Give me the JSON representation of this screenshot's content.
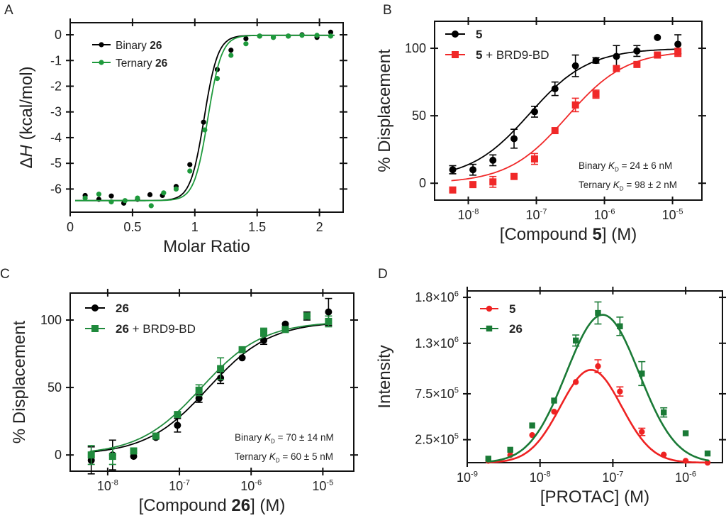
{
  "chart_data": [
    {
      "panel_label": "A",
      "type": "scatter",
      "xscale": "linear",
      "xlim": [
        0,
        2.19
      ],
      "ylim": [
        -6.9,
        0.47
      ],
      "xlabel": [
        [
          "Molar Ratio",
          ""
        ]
      ],
      "ylabel": [
        [
          "Δ",
          ""
        ],
        [
          "H",
          "i"
        ],
        [
          " (kcal/mol)",
          ""
        ]
      ],
      "xticks": [
        0,
        0.5,
        1,
        1.5,
        2
      ],
      "xtick_labels": [
        [
          [
            "0",
            ""
          ]
        ],
        [
          [
            "0.5",
            ""
          ]
        ],
        [
          [
            "1",
            ""
          ]
        ],
        [
          [
            "1.5",
            ""
          ]
        ],
        [
          [
            "2",
            ""
          ]
        ]
      ],
      "yticks": [
        0,
        -1,
        -2,
        -3,
        -4,
        -5,
        -6
      ],
      "ytick_labels": [
        [
          [
            "0",
            ""
          ]
        ],
        [
          [
            "-1",
            ""
          ]
        ],
        [
          [
            "-2",
            ""
          ]
        ],
        [
          [
            "-3",
            ""
          ]
        ],
        [
          [
            "-4",
            ""
          ]
        ],
        [
          [
            "-5",
            ""
          ]
        ],
        [
          [
            "-6",
            ""
          ]
        ]
      ],
      "legend": "top-left",
      "fit_curve": "sigmoid",
      "series": [
        {
          "name": [
            [
              "Binary ",
              ""
            ],
            [
              "26",
              "b"
            ]
          ],
          "color": "#000000",
          "marker": "circle",
          "points": [
            [
              0.12,
              -6.25
            ],
            [
              0.23,
              -6.4
            ],
            [
              0.33,
              -6.27
            ],
            [
              0.43,
              -6.55
            ],
            [
              0.54,
              -6.4
            ],
            [
              0.64,
              -6.22
            ],
            [
              0.74,
              -6.25
            ],
            [
              0.85,
              -5.9
            ],
            [
              0.96,
              -5.05
            ],
            [
              1.07,
              -3.4
            ],
            [
              1.18,
              -1.35
            ],
            [
              1.29,
              -0.6
            ],
            [
              1.41,
              -0.15
            ],
            [
              1.52,
              -0.05
            ],
            [
              1.63,
              -0.1
            ],
            [
              1.75,
              -0.05
            ],
            [
              1.86,
              0.0
            ],
            [
              1.98,
              -0.1
            ],
            [
              2.09,
              0.1
            ]
          ]
        },
        {
          "name": [
            [
              "Ternary ",
              ""
            ],
            [
              "26",
              "b"
            ]
          ],
          "color": "#1e9a3c",
          "marker": "circle",
          "points": [
            [
              0.12,
              -6.35
            ],
            [
              0.23,
              -6.2
            ],
            [
              0.33,
              -6.5
            ],
            [
              0.44,
              -6.45
            ],
            [
              0.54,
              -6.35
            ],
            [
              0.65,
              -6.65
            ],
            [
              0.75,
              -6.15
            ],
            [
              0.85,
              -6.0
            ],
            [
              0.96,
              -5.3
            ],
            [
              1.08,
              -3.7
            ],
            [
              1.18,
              -1.7
            ],
            [
              1.29,
              -0.8
            ],
            [
              1.41,
              -0.35
            ],
            [
              1.52,
              -0.05
            ],
            [
              1.63,
              -0.1
            ],
            [
              1.75,
              -0.05
            ],
            [
              1.86,
              -0.02
            ],
            [
              1.98,
              -0.02
            ],
            [
              2.09,
              -0.05
            ]
          ]
        }
      ]
    },
    {
      "panel_label": "B",
      "type": "scatter",
      "xscale": "log",
      "xlim": [
        3.2e-09,
        2.7e-05
      ],
      "ylim": [
        -12.5,
        120
      ],
      "xlabel": [
        [
          "[Compound ",
          ""
        ],
        [
          "5",
          "b"
        ],
        [
          "] (M)",
          ""
        ]
      ],
      "ylabel": [
        [
          "% Displacement",
          ""
        ]
      ],
      "xticks": [
        1e-08,
        1e-07,
        1e-06,
        1e-05
      ],
      "xtick_labels": [
        [
          [
            "10",
            ""
          ],
          [
            "-8",
            "sup"
          ]
        ],
        [
          [
            "10",
            ""
          ],
          [
            "-7",
            "sup"
          ]
        ],
        [
          [
            "10",
            ""
          ],
          [
            "-6",
            "sup"
          ]
        ],
        [
          [
            "10",
            ""
          ],
          [
            "-5",
            "sup"
          ]
        ]
      ],
      "yticks": [
        0,
        50,
        100
      ],
      "ytick_labels": [
        [
          [
            "0",
            ""
          ]
        ],
        [
          [
            "50",
            ""
          ]
        ],
        [
          [
            "100",
            ""
          ]
        ]
      ],
      "legend": "top-left",
      "fit_curve": "dose-response",
      "annotations": [
        [
          [
            "Binary ",
            ""
          ],
          [
            "K",
            "i"
          ],
          [
            "D",
            "sub"
          ],
          [
            " =  24 ± 6 nM",
            ""
          ]
        ],
        [
          [
            "Ternary ",
            ""
          ],
          [
            "K",
            "i"
          ],
          [
            "D",
            "sub"
          ],
          [
            " = 98 ± 2 nM",
            ""
          ]
        ]
      ],
      "series": [
        {
          "name": [
            [
              "5",
              "b"
            ]
          ],
          "color": "#000000",
          "marker": "circle",
          "points": [
            [
              5.9e-09,
              10,
              3
            ],
            [
              1.17e-08,
              10,
              4
            ],
            [
              2.3e-08,
              17,
              4
            ],
            [
              4.7e-08,
              33,
              7
            ],
            [
              9.4e-08,
              53,
              4
            ],
            [
              1.875e-07,
              70,
              5
            ],
            [
              3.75e-07,
              87,
              8
            ],
            [
              7.5e-07,
              91,
              2
            ],
            [
              1.5e-06,
              94,
              8
            ],
            [
              3e-06,
              98,
              4
            ],
            [
              6e-06,
              108,
              0
            ],
            [
              1.2e-05,
              103,
              7
            ]
          ]
        },
        {
          "name": [
            [
              "5",
              "b"
            ],
            [
              " + BRD9-BD",
              ""
            ]
          ],
          "color": "#f02828",
          "marker": "square",
          "points": [
            [
              5.9e-09,
              -5,
              0
            ],
            [
              1.17e-08,
              -1,
              0
            ],
            [
              2.3e-08,
              1,
              4
            ],
            [
              4.7e-08,
              5,
              0
            ],
            [
              9.4e-08,
              18,
              4
            ],
            [
              1.875e-07,
              39,
              0
            ],
            [
              3.75e-07,
              58,
              5
            ],
            [
              7.5e-07,
              66,
              3
            ],
            [
              1.5e-06,
              85,
              0
            ],
            [
              3e-06,
              88,
              0
            ],
            [
              6e-06,
              95,
              0
            ],
            [
              1.2e-05,
              97,
              3
            ]
          ]
        }
      ]
    },
    {
      "panel_label": "C",
      "type": "scatter",
      "xscale": "log",
      "xlim": [
        3e-09,
        2.7e-05
      ],
      "ylim": [
        -12,
        120
      ],
      "xlabel": [
        [
          "[Compound ",
          ""
        ],
        [
          "26",
          "b"
        ],
        [
          "] (M)",
          ""
        ]
      ],
      "ylabel": [
        [
          "% Displacement",
          ""
        ]
      ],
      "xticks": [
        1e-08,
        1e-07,
        1e-06,
        1e-05
      ],
      "xtick_labels": [
        [
          [
            "10",
            ""
          ],
          [
            "-8",
            "sup"
          ]
        ],
        [
          [
            "10",
            ""
          ],
          [
            "-7",
            "sup"
          ]
        ],
        [
          [
            "10",
            ""
          ],
          [
            "-6",
            "sup"
          ]
        ],
        [
          [
            "10",
            ""
          ],
          [
            "-5",
            "sup"
          ]
        ]
      ],
      "yticks": [
        0,
        50,
        100
      ],
      "ytick_labels": [
        [
          [
            "0",
            ""
          ]
        ],
        [
          [
            "50",
            ""
          ]
        ],
        [
          [
            "100",
            ""
          ]
        ]
      ],
      "legend": "top-left",
      "fit_curve": "dose-response",
      "annotations": [
        [
          [
            "Binary ",
            ""
          ],
          [
            "K",
            "i"
          ],
          [
            "D",
            "sub"
          ],
          [
            " =  70 ± 14 nM",
            ""
          ]
        ],
        [
          [
            "Ternary ",
            ""
          ],
          [
            "K",
            "i"
          ],
          [
            "D",
            "sub"
          ],
          [
            " = 60 ± 5 nM",
            ""
          ]
        ]
      ],
      "series": [
        {
          "name": [
            [
              "26",
              "b"
            ]
          ],
          "color": "#000000",
          "marker": "circle",
          "points": [
            [
              5.9e-09,
              -4,
              10
            ],
            [
              1.17e-08,
              0,
              11
            ],
            [
              2.3e-08,
              -1,
              0
            ],
            [
              4.7e-08,
              13,
              0
            ],
            [
              9.4e-08,
              22,
              5
            ],
            [
              1.875e-07,
              42,
              3
            ],
            [
              3.75e-07,
              57,
              4
            ],
            [
              7.5e-07,
              72,
              0
            ],
            [
              1.5e-06,
              85,
              3
            ],
            [
              3e-06,
              97,
              0
            ],
            [
              6e-06,
              103,
              3
            ],
            [
              1.2e-05,
              106,
              10
            ]
          ]
        },
        {
          "name": [
            [
              "26",
              "b"
            ],
            [
              " + BRD9-BD",
              ""
            ]
          ],
          "color": "#1f8a3c",
          "marker": "square",
          "points": [
            [
              5.9e-09,
              0,
              7
            ],
            [
              1.17e-08,
              -1,
              6
            ],
            [
              2.3e-08,
              3,
              0
            ],
            [
              4.7e-08,
              14,
              0
            ],
            [
              9.4e-08,
              30,
              0
            ],
            [
              1.875e-07,
              48,
              4
            ],
            [
              3.75e-07,
              64,
              8
            ],
            [
              7.5e-07,
              78,
              0
            ],
            [
              1.5e-06,
              91,
              3
            ],
            [
              3e-06,
              93,
              0
            ],
            [
              6e-06,
              103,
              2
            ],
            [
              1.2e-05,
              99,
              4
            ]
          ]
        }
      ]
    },
    {
      "panel_label": "D",
      "type": "scatter",
      "xscale": "log",
      "xlim": [
        1e-09,
        3.2e-06
      ],
      "ylim": [
        0,
        1870000
      ],
      "xlabel": [
        [
          "[PROTAC] (M)",
          ""
        ]
      ],
      "ylabel": [
        [
          "Intensity",
          ""
        ]
      ],
      "xticks": [
        1e-09,
        1e-08,
        1e-07,
        1e-06
      ],
      "xtick_labels": [
        [
          [
            "10",
            ""
          ],
          [
            "-9",
            "sup"
          ]
        ],
        [
          [
            "10",
            ""
          ],
          [
            "-8",
            "sup"
          ]
        ],
        [
          [
            "10",
            ""
          ],
          [
            "-7",
            "sup"
          ]
        ],
        [
          [
            "10",
            ""
          ],
          [
            "-6",
            "sup"
          ]
        ]
      ],
      "yticks": [
        250000,
        750000,
        1300000,
        1800000
      ],
      "ytick_labels": [
        [
          [
            "2.5×10",
            ""
          ],
          [
            "5",
            "sup"
          ]
        ],
        [
          [
            "7.5×10",
            ""
          ],
          [
            "5",
            "sup"
          ]
        ],
        [
          [
            "1.3×10",
            ""
          ],
          [
            "6",
            "sup"
          ]
        ],
        [
          [
            "1.8×10",
            ""
          ],
          [
            "6",
            "sup"
          ]
        ]
      ],
      "legend": "top-left",
      "fit_curve": "bell-shaped",
      "series": [
        {
          "name": [
            [
              "5",
              "b"
            ]
          ],
          "color": "#ee2222",
          "marker": "circle",
          "points": [
            [
              1.95e-09,
              20000,
              0
            ],
            [
              3.9e-09,
              82000,
              0
            ],
            [
              7.8e-09,
              300000,
              0
            ],
            [
              1.56e-08,
              555000,
              0
            ],
            [
              3.1e-08,
              878000,
              0
            ],
            [
              6.25e-08,
              1050000,
              70000
            ],
            [
              1.25e-07,
              775000,
              50000
            ],
            [
              2.5e-07,
              335000,
              40000
            ],
            [
              5e-07,
              87000,
              0
            ],
            [
              1e-06,
              20000,
              0
            ],
            [
              2e-06,
              0,
              0
            ]
          ]
        },
        {
          "name": [
            [
              "26",
              "b"
            ]
          ],
          "color": "#1a7a36",
          "marker": "square",
          "points": [
            [
              1.95e-09,
              43000,
              0
            ],
            [
              3.9e-09,
              140000,
              0
            ],
            [
              7.8e-09,
              405000,
              0
            ],
            [
              1.56e-08,
              676000,
              0
            ],
            [
              3.1e-08,
              1330000,
              60000
            ],
            [
              6.25e-08,
              1630000,
              120000
            ],
            [
              1.25e-07,
              1485000,
              100000
            ],
            [
              2.5e-07,
              970000,
              130000
            ],
            [
              5e-07,
              547000,
              50000
            ],
            [
              1e-06,
              320000,
              0
            ],
            [
              2e-06,
              100000,
              0
            ]
          ]
        }
      ]
    }
  ]
}
